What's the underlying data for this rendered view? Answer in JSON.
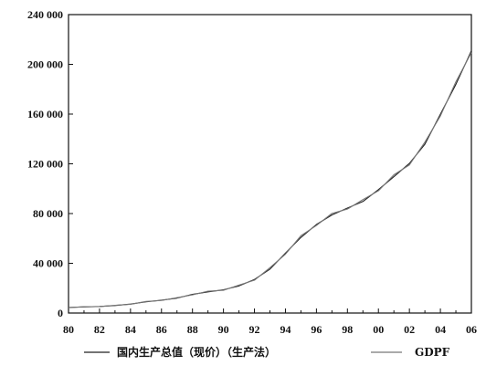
{
  "chart_data": {
    "type": "line",
    "x_tick_labels": [
      "80",
      "82",
      "84",
      "86",
      "88",
      "90",
      "92",
      "94",
      "96",
      "98",
      "00",
      "02",
      "04",
      "06"
    ],
    "y_tick_labels": [
      "0",
      "40 000",
      "80 000",
      "120 000",
      "160 000",
      "200 000",
      "240 000"
    ],
    "xlim": [
      1980,
      2006
    ],
    "ylim": [
      0,
      240000
    ],
    "y_ticks": [
      0,
      40000,
      80000,
      120000,
      160000,
      200000,
      240000
    ],
    "x_ticks": [
      1980,
      1982,
      1984,
      1986,
      1988,
      1990,
      1992,
      1994,
      1996,
      1998,
      2000,
      2002,
      2004,
      2006
    ],
    "legend_placement": "bottom",
    "grid": false,
    "series": [
      {
        "name": "国内生产总值（现价）（生产法）",
        "color": "#222222",
        "points": [
          [
            1980,
            4500
          ],
          [
            1981,
            4900
          ],
          [
            1982,
            5300
          ],
          [
            1983,
            6000
          ],
          [
            1984,
            7200
          ],
          [
            1985,
            9000
          ],
          [
            1986,
            10300
          ],
          [
            1987,
            12000
          ],
          [
            1988,
            15000
          ],
          [
            1989,
            17000
          ],
          [
            1990,
            18700
          ],
          [
            1991,
            21800
          ],
          [
            1992,
            27000
          ],
          [
            1993,
            35300
          ],
          [
            1994,
            48200
          ],
          [
            1995,
            60800
          ],
          [
            1996,
            71200
          ],
          [
            1997,
            78900
          ],
          [
            1998,
            84400
          ],
          [
            1999,
            89700
          ],
          [
            2000,
            99200
          ],
          [
            2001,
            109700
          ],
          [
            2002,
            120300
          ],
          [
            2003,
            135800
          ],
          [
            2004,
            159900
          ],
          [
            2005,
            183900
          ],
          [
            2006,
            210900
          ]
        ]
      },
      {
        "name": "GDPF",
        "color": "#777777",
        "points": [
          [
            1980,
            4300
          ],
          [
            1981,
            5100
          ],
          [
            1982,
            5200
          ],
          [
            1983,
            6200
          ],
          [
            1984,
            7000
          ],
          [
            1985,
            9300
          ],
          [
            1986,
            10100
          ],
          [
            1987,
            12400
          ],
          [
            1988,
            14600
          ],
          [
            1989,
            17600
          ],
          [
            1990,
            18300
          ],
          [
            1991,
            22500
          ],
          [
            1992,
            26400
          ],
          [
            1993,
            36500
          ],
          [
            1994,
            47300
          ],
          [
            1995,
            62200
          ],
          [
            1996,
            70400
          ],
          [
            1997,
            80100
          ],
          [
            1998,
            83600
          ],
          [
            1999,
            91200
          ],
          [
            2000,
            98300
          ],
          [
            2001,
            111200
          ],
          [
            2002,
            119100
          ],
          [
            2003,
            137500
          ],
          [
            2004,
            158500
          ],
          [
            2005,
            186000
          ],
          [
            2006,
            209500
          ]
        ]
      }
    ]
  }
}
